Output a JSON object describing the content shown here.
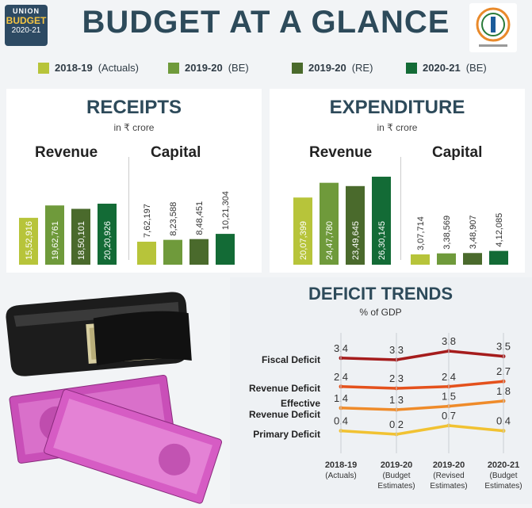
{
  "header": {
    "badge_line1": "UNION",
    "badge_line2": "BUDGET",
    "badge_line3": "2020-21",
    "title": "BUDGET AT A GLANCE"
  },
  "colors": {
    "actual_2018_19": "#b7c43a",
    "be_2019_20": "#6f9a3b",
    "re_2019_20": "#4a6a2c",
    "be_2020_21": "#136b36",
    "fiscal": "#a51c1c",
    "revenue": "#e4511c",
    "effective": "#ef8b2a",
    "primary": "#f1c232"
  },
  "legend": [
    {
      "year": "2018-19",
      "note": "(Actuals)"
    },
    {
      "year": "2019-20",
      "note": "(BE)"
    },
    {
      "year": "2019-20",
      "note": "(RE)"
    },
    {
      "year": "2020-21",
      "note": "(BE)"
    }
  ],
  "receipts": {
    "title": "RECEIPTS",
    "unit": "in ₹ crore",
    "revenue_label": "Revenue",
    "capital_label": "Capital"
  },
  "expenditure": {
    "title": "EXPENDITURE",
    "unit": "in ₹ crore",
    "revenue_label": "Revenue",
    "capital_label": "Capital"
  },
  "deficit": {
    "title": "DEFICIT TRENDS",
    "unit": "% of GDP"
  },
  "chart_data": [
    {
      "type": "bar",
      "title": "RECEIPTS",
      "subtitle": "in ₹ crore",
      "groups": [
        "Revenue",
        "Capital"
      ],
      "series": [
        {
          "name": "2018-19 (Actuals)",
          "values": [
            1552916,
            762197
          ],
          "labels": [
            "15,52,916",
            "7,62,197"
          ]
        },
        {
          "name": "2019-20 (BE)",
          "values": [
            1962761,
            823588
          ],
          "labels": [
            "19,62,761",
            "8,23,588"
          ]
        },
        {
          "name": "2019-20 (RE)",
          "values": [
            1850101,
            848451
          ],
          "labels": [
            "18,50,101",
            "8,48,451"
          ]
        },
        {
          "name": "2020-21 (BE)",
          "values": [
            2020926,
            1021304
          ],
          "labels": [
            "20,20,926",
            "10,21,304"
          ]
        }
      ]
    },
    {
      "type": "bar",
      "title": "EXPENDITURE",
      "subtitle": "in ₹ crore",
      "groups": [
        "Revenue",
        "Capital"
      ],
      "series": [
        {
          "name": "2018-19 (Actuals)",
          "values": [
            2007399,
            307714
          ],
          "labels": [
            "20,07,399",
            "3,07,714"
          ]
        },
        {
          "name": "2019-20 (BE)",
          "values": [
            2447780,
            338569
          ],
          "labels": [
            "24,47,780",
            "3,38,569"
          ]
        },
        {
          "name": "2019-20 (RE)",
          "values": [
            2349645,
            348907
          ],
          "labels": [
            "23,49,645",
            "3,48,907"
          ]
        },
        {
          "name": "2020-21 (BE)",
          "values": [
            2630145,
            412085
          ],
          "labels": [
            "26,30,145",
            "4,12,085"
          ]
        }
      ]
    },
    {
      "type": "line",
      "title": "DEFICIT TRENDS",
      "subtitle": "% of GDP",
      "categories": [
        {
          "line1": "2018-19",
          "line2": "(Actuals)"
        },
        {
          "line1": "2019-20",
          "line2": "(Budget",
          "line3": "Estimates)"
        },
        {
          "line1": "2019-20",
          "line2": "(Revised",
          "line3": "Estimates)"
        },
        {
          "line1": "2020-21",
          "line2": "(Budget",
          "line3": "Estimates)"
        }
      ],
      "series": [
        {
          "name": "Fiscal Deficit",
          "name2": "",
          "values": [
            3.4,
            3.3,
            3.8,
            3.5
          ],
          "labels": [
            "3.4",
            "3.3",
            "3.8",
            "3.5"
          ]
        },
        {
          "name": "Revenue Deficit",
          "name2": "",
          "values": [
            2.4,
            2.3,
            2.4,
            2.7
          ],
          "labels": [
            "2.4",
            "2.3",
            "2.4",
            "2.7"
          ]
        },
        {
          "name": "Effective",
          "name2": "Revenue Deficit",
          "values": [
            1.4,
            1.3,
            1.5,
            1.8
          ],
          "labels": [
            "1.4",
            "1.3",
            "1.5",
            "1.8"
          ]
        },
        {
          "name": "Primary Deficit",
          "name2": "",
          "values": [
            0.4,
            0.2,
            0.7,
            0.4
          ],
          "labels": [
            "0.4",
            "0.2",
            "0.7",
            "0.4"
          ]
        }
      ]
    }
  ]
}
